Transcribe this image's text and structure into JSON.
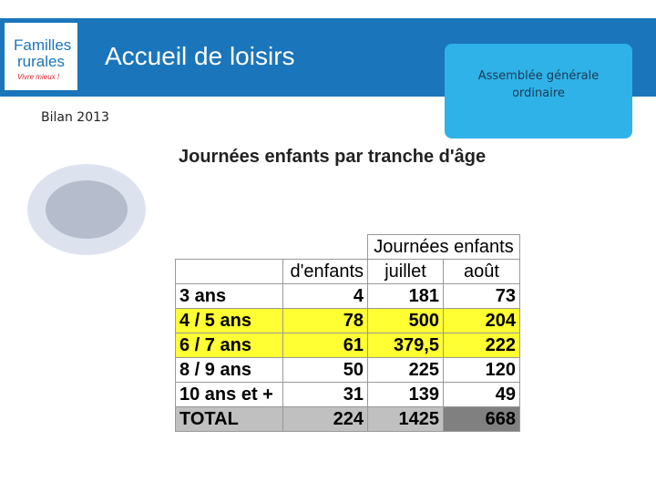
{
  "header": {
    "logo": {
      "line1": "Familles",
      "line2": "rurales",
      "tagline": "Vivre mieux !"
    },
    "title": "Accueil de loisirs",
    "badge": "Assemblée générale ordinaire",
    "subtitle": "Bilan 2013"
  },
  "table": {
    "title": "Journées enfants par tranche d'âge",
    "group_header": "Journées enfants",
    "columns": [
      "d'enfants",
      "juillet",
      "août"
    ],
    "rows": [
      [
        "3 ans",
        "4",
        "181",
        "73"
      ],
      [
        "4 / 5 ans",
        "78",
        "500",
        "204"
      ],
      [
        "6 / 7 ans",
        "61",
        "379,5",
        "222"
      ],
      [
        "8 / 9 ans",
        "50",
        "225",
        "120"
      ],
      [
        "10 ans et +",
        "31",
        "139",
        "49"
      ],
      [
        "TOTAL",
        "224",
        "1425",
        "668"
      ]
    ],
    "highlighted_rows": [
      1,
      2
    ],
    "total_row": 5
  }
}
